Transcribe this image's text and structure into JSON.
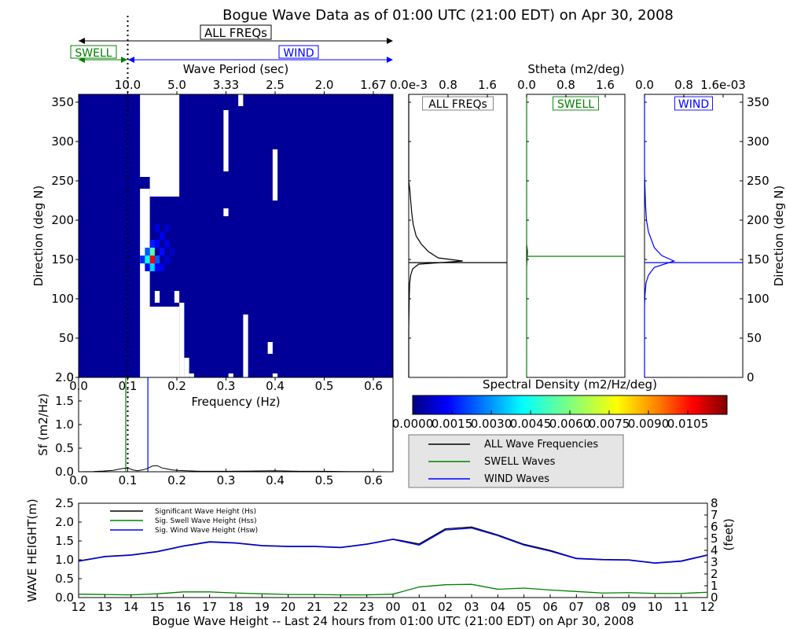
{
  "figure": {
    "title": "Bogue Wave Data as of 01:00 UTC (21:00 EDT) on Apr 30, 2008",
    "band_all": "ALL FREQs",
    "band_swell": "SWELL",
    "band_wind": "WIND",
    "colors": {
      "all": "#000000",
      "swell": "#008000",
      "wind": "#0000ff",
      "colormap": [
        "#00007f",
        "#0000ff",
        "#007fff",
        "#00ffff",
        "#7fff7f",
        "#ffff00",
        "#ff7f00",
        "#ff0000",
        "#7f0000"
      ]
    }
  },
  "chart_data": [
    {
      "id": "directional-spectrum",
      "type": "heatmap",
      "title": "",
      "xlabel": "Frequency (Hz)",
      "ylabel": "Direction (deg N)",
      "top_axis_label": "Wave Period (sec)",
      "xlim": [
        0.0,
        0.64
      ],
      "ylim": [
        0,
        360
      ],
      "x_ticks": [
        "0.0",
        "0.1",
        "0.2",
        "0.3",
        "0.4",
        "0.5",
        "0.6"
      ],
      "y_ticks": [
        "0",
        "50",
        "100",
        "150",
        "200",
        "250",
        "300",
        "350"
      ],
      "top_ticks": [
        {
          "label": "10.0",
          "freq": 0.1
        },
        {
          "label": "5.0",
          "freq": 0.2
        },
        {
          "label": "3.33",
          "freq": 0.3
        },
        {
          "label": "2.5",
          "freq": 0.4
        },
        {
          "label": "2.0",
          "freq": 0.5
        },
        {
          "label": "1.67",
          "freq": 0.6
        }
      ],
      "swell_wind_separation_hz": 0.1,
      "background_level": 0.0003,
      "freq_bins": [
        0.03,
        0.04,
        0.05,
        0.06,
        0.07,
        0.08,
        0.09,
        0.1,
        0.11,
        0.12,
        0.13,
        0.14,
        0.15,
        0.16,
        0.17,
        0.18,
        0.19,
        0.2,
        0.21,
        0.22,
        0.23,
        0.24,
        0.25,
        0.26,
        0.27,
        0.28,
        0.29,
        0.3,
        0.31,
        0.32,
        0.33,
        0.34,
        0.35,
        0.36,
        0.37,
        0.38,
        0.39,
        0.4,
        0.41,
        0.42,
        0.43,
        0.44,
        0.45,
        0.46,
        0.47,
        0.48,
        0.49,
        0.5,
        0.51,
        0.52,
        0.53,
        0.54,
        0.55,
        0.56,
        0.57,
        0.58,
        0.59,
        0.6,
        0.61,
        0.62,
        0.63
      ],
      "missing_blocks": [
        {
          "f": [
            0.125,
            0.205
          ],
          "d": [
            0,
            90
          ]
        },
        {
          "f": [
            0.125,
            0.205
          ],
          "d": [
            255,
            360
          ]
        },
        {
          "f": [
            0.125,
            0.145
          ],
          "d": [
            90,
            240
          ]
        },
        {
          "f": [
            0.145,
            0.205
          ],
          "d": [
            230,
            255
          ]
        },
        {
          "f": [
            0.205,
            0.215
          ],
          "d": [
            0,
            95
          ]
        },
        {
          "f": [
            0.195,
            0.205
          ],
          "d": [
            95,
            110
          ]
        },
        {
          "f": [
            0.155,
            0.165
          ],
          "d": [
            95,
            110
          ]
        },
        {
          "f": [
            0.215,
            0.225
          ],
          "d": [
            0,
            25
          ]
        },
        {
          "f": [
            0.225,
            0.235
          ],
          "d": [
            0,
            5
          ]
        },
        {
          "f": [
            0.305,
            0.315
          ],
          "d": [
            0,
            5
          ]
        },
        {
          "f": [
            0.335,
            0.345
          ],
          "d": [
            0,
            80
          ]
        },
        {
          "f": [
            0.325,
            0.335
          ],
          "d": [
            345,
            360
          ]
        },
        {
          "f": [
            0.295,
            0.305
          ],
          "d": [
            205,
            215
          ]
        },
        {
          "f": [
            0.295,
            0.305
          ],
          "d": [
            262,
            340
          ]
        },
        {
          "f": [
            0.395,
            0.405
          ],
          "d": [
            225,
            290
          ]
        },
        {
          "f": [
            0.385,
            0.395
          ],
          "d": [
            30,
            45
          ]
        },
        {
          "f": [
            0.395,
            0.405
          ],
          "d": [
            0,
            5
          ]
        }
      ],
      "peaks": [
        {
          "f": 0.15,
          "d": 150,
          "value": 0.0105
        },
        {
          "f": 0.15,
          "d": 160,
          "value": 0.0055
        },
        {
          "f": 0.14,
          "d": 150,
          "value": 0.0045
        },
        {
          "f": 0.15,
          "d": 140,
          "value": 0.004
        },
        {
          "f": 0.16,
          "d": 150,
          "value": 0.0025
        },
        {
          "f": 0.14,
          "d": 160,
          "value": 0.0025
        },
        {
          "f": 0.13,
          "d": 150,
          "value": 0.002
        },
        {
          "f": 0.15,
          "d": 170,
          "value": 0.0018
        },
        {
          "f": 0.16,
          "d": 170,
          "value": 0.0015
        },
        {
          "f": 0.17,
          "d": 160,
          "value": 0.0016
        },
        {
          "f": 0.17,
          "d": 180,
          "value": 0.0014
        },
        {
          "f": 0.18,
          "d": 170,
          "value": 0.0012
        },
        {
          "f": 0.16,
          "d": 140,
          "value": 0.0015
        },
        {
          "f": 0.17,
          "d": 140,
          "value": 0.0012
        },
        {
          "f": 0.14,
          "d": 140,
          "value": 0.0014
        },
        {
          "f": 0.16,
          "d": 190,
          "value": 0.0011
        },
        {
          "f": 0.18,
          "d": 190,
          "value": 0.0009
        },
        {
          "f": 0.18,
          "d": 150,
          "value": 0.001
        },
        {
          "f": 0.19,
          "d": 160,
          "value": 0.0008
        }
      ]
    },
    {
      "id": "colorbar",
      "type": "heatmap",
      "title": "Spectral Density (m2/Hz/deg)",
      "range": [
        0.0,
        0.012
      ],
      "ticks": [
        "0.0000",
        "0.0015",
        "0.0030",
        "0.0045",
        "0.0060",
        "0.0075",
        "0.0090",
        "0.0105"
      ]
    },
    {
      "id": "stheta-all",
      "type": "line",
      "title": "ALL FREQs",
      "top_axis_label": "Stheta (m2/deg)",
      "x_ticks": [
        "0.0e-3",
        "0.8",
        "1.6"
      ],
      "xlim": [
        0.0,
        0.002
      ],
      "ylim": [
        0,
        360
      ],
      "peak_dir": 146,
      "x": [
        0,
        0,
        0,
        0,
        0,
        2e-05,
        4e-05,
        6e-05,
        9e-05,
        0.00015,
        0.00025,
        0.0004,
        0.0006,
        0.0011,
        0.0002,
        8e-05,
        4e-05,
        2e-05,
        1e-05,
        0,
        0
      ],
      "y": [
        360,
        300,
        270,
        260,
        250,
        240,
        225,
        210,
        195,
        180,
        170,
        160,
        152,
        148,
        144,
        138,
        130,
        120,
        100,
        60,
        0
      ]
    },
    {
      "id": "stheta-swell",
      "type": "line",
      "title": "SWELL",
      "x_ticks": [
        "0.0",
        "0.8",
        "1.6"
      ],
      "xlim": [
        0.0,
        0.002
      ],
      "ylim": [
        0,
        360
      ],
      "peak_dir": 154,
      "x": [
        0,
        0,
        0,
        2e-05,
        1e-05,
        0,
        0
      ],
      "y": [
        360,
        200,
        170,
        160,
        150,
        140,
        0
      ]
    },
    {
      "id": "stheta-wind",
      "type": "line",
      "title": "WIND",
      "x_ticks": [
        "0.0",
        "0.8",
        "1.6e-03"
      ],
      "xlim": [
        0.0,
        0.002
      ],
      "ylim": [
        0,
        360
      ],
      "right_axis_label": "Direction (deg N)",
      "y_ticks": [
        "0",
        "50",
        "100",
        "150",
        "200",
        "250",
        "300",
        "350"
      ],
      "peak_dir": 146,
      "x": [
        0,
        0,
        1e-05,
        2e-05,
        4e-05,
        8e-05,
        0.00014,
        0.0002,
        0.00035,
        0.0006,
        0.0002,
        8e-05,
        3e-05,
        1e-05,
        0,
        0
      ],
      "y": [
        360,
        260,
        240,
        220,
        200,
        185,
        175,
        165,
        155,
        148,
        140,
        130,
        120,
        105,
        90,
        0
      ]
    },
    {
      "id": "frequency-spectrum",
      "type": "line",
      "xlabel": "Frequency (Hz)",
      "ylabel": "Sf (m2/Hz)",
      "xlim": [
        0.0,
        0.64
      ],
      "ylim": [
        0.0,
        2.0
      ],
      "x_ticks": [
        "0.0",
        "0.1",
        "0.2",
        "0.3",
        "0.4",
        "0.5",
        "0.6"
      ],
      "y_ticks": [
        "0.0",
        "0.5",
        "1.0",
        "1.5",
        "2.0"
      ],
      "swell_peak_hz": 0.096,
      "wind_peak_hz": 0.141,
      "x": [
        0.0,
        0.03,
        0.05,
        0.07,
        0.08,
        0.09,
        0.1,
        0.11,
        0.12,
        0.13,
        0.14,
        0.15,
        0.16,
        0.17,
        0.18,
        0.19,
        0.2,
        0.22,
        0.25,
        0.3,
        0.35,
        0.4,
        0.45,
        0.5,
        0.55,
        0.6,
        0.63
      ],
      "y": [
        0.0,
        0.005,
        0.015,
        0.03,
        0.05,
        0.07,
        0.08,
        0.04,
        0.02,
        0.04,
        0.07,
        0.12,
        0.13,
        0.08,
        0.06,
        0.04,
        0.03,
        0.02,
        0.01,
        0.01,
        0.015,
        0.02,
        0.01,
        0.01,
        0.005,
        0.005,
        0.0
      ],
      "legend": [
        "ALL Wave Frequencies",
        "SWELL Waves",
        "WIND Waves"
      ]
    },
    {
      "id": "wave-height",
      "type": "line",
      "title": "Bogue Wave Height -- Last 24 hours from 01:00 UTC (21:00 EDT) on Apr 30, 2008",
      "ylabel": "WAVE HEIGHT(m)",
      "right_ylabel": "(feet)",
      "categories": [
        "12",
        "13",
        "14",
        "15",
        "16",
        "17",
        "18",
        "19",
        "20",
        "21",
        "22",
        "23",
        "00",
        "01",
        "02",
        "03",
        "04",
        "05",
        "06",
        "07",
        "08",
        "09",
        "10",
        "11",
        "12"
      ],
      "ylim": [
        0.0,
        2.5
      ],
      "y_ticks": [
        "0.0",
        "0.5",
        "1.0",
        "1.5",
        "2.0",
        "2.5"
      ],
      "right_ylim": [
        0,
        8
      ],
      "right_ticks": [
        "0",
        "1",
        "2",
        "3",
        "4",
        "5",
        "6",
        "7",
        "8"
      ],
      "series": [
        {
          "name": "Significant Wave Height (Hs)",
          "key": "all",
          "values": [
            0.97,
            1.09,
            1.13,
            1.22,
            1.37,
            1.48,
            1.45,
            1.38,
            1.36,
            1.36,
            1.33,
            1.42,
            1.55,
            1.42,
            1.82,
            1.87,
            1.66,
            1.41,
            1.25,
            1.04,
            1.01,
            1.0,
            0.92,
            0.97,
            1.13
          ]
        },
        {
          "name": "Sig. Swell Wave Height (Hss)",
          "key": "swell",
          "values": [
            0.09,
            0.08,
            0.07,
            0.1,
            0.15,
            0.15,
            0.12,
            0.1,
            0.08,
            0.08,
            0.07,
            0.07,
            0.09,
            0.28,
            0.34,
            0.35,
            0.22,
            0.25,
            0.2,
            0.16,
            0.12,
            0.13,
            0.11,
            0.11,
            0.14
          ]
        },
        {
          "name": "Sig. Wind Wave Height (Hsw)",
          "key": "wind",
          "values": [
            0.96,
            1.08,
            1.12,
            1.21,
            1.36,
            1.47,
            1.44,
            1.37,
            1.35,
            1.35,
            1.32,
            1.41,
            1.54,
            1.39,
            1.79,
            1.84,
            1.64,
            1.39,
            1.23,
            1.03,
            1.0,
            0.99,
            0.91,
            0.96,
            1.12
          ]
        }
      ]
    }
  ]
}
